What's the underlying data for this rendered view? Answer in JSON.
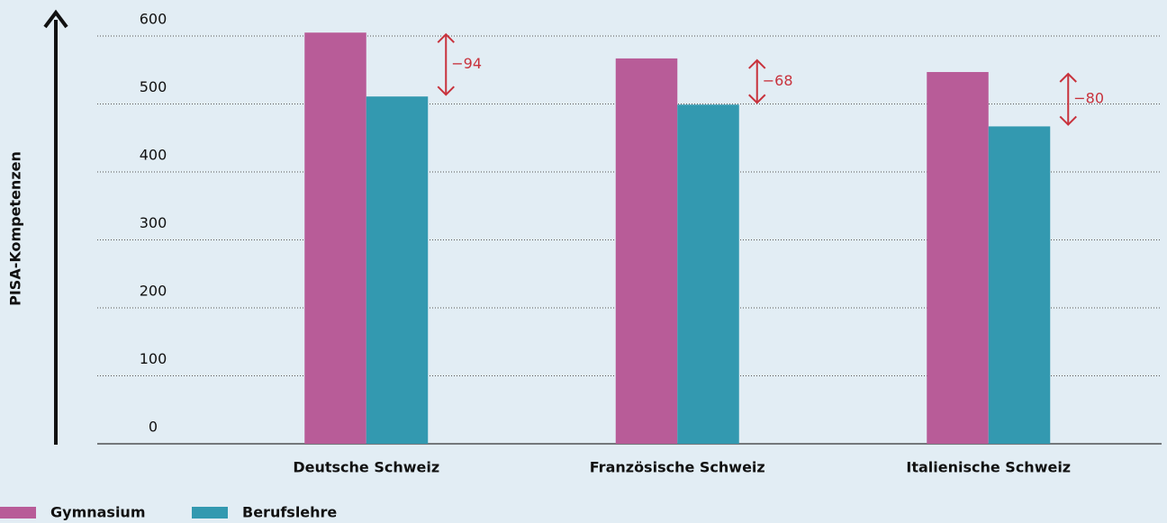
{
  "chart_data": {
    "type": "bar",
    "y_label": "PISA-Kompetenzen",
    "categories": [
      "Deutsche Schweiz",
      "Französische Schweiz",
      "Italienische Schweiz"
    ],
    "series": [
      {
        "name": "Gymnasium",
        "color": "#b85c98",
        "values": [
          605,
          567,
          547
        ]
      },
      {
        "name": "Berufslehre",
        "color": "#3399b0",
        "values": [
          511,
          499,
          467
        ]
      }
    ],
    "annotations": [
      "−94",
      "−68",
      "−80"
    ],
    "annotation_color": "#c8323c",
    "ylim": [
      0,
      600
    ],
    "yticks": [
      0,
      100,
      200,
      300,
      400,
      500,
      600
    ],
    "grid": true
  }
}
